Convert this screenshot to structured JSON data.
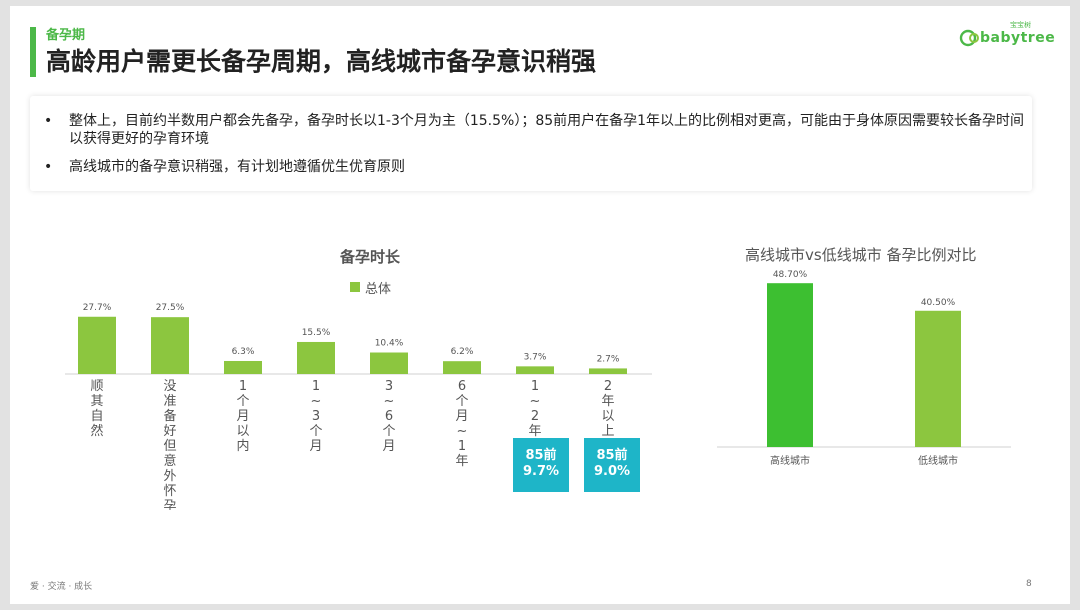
{
  "header": {
    "section": "备孕期",
    "title": "高龄用户需更长备孕周期，高线城市备孕意识稍强",
    "logo_cn": "宝宝树",
    "logo_en": "babytree"
  },
  "summary": {
    "bullets": [
      "整体上，目前约半数用户都会先备孕，备孕时长以1-3个月为主（15.5%）；85前用户在备孕1年以上的比例相对更高，可能由于身体原因需要较长备孕时间以获得更好的孕育环境",
      "高线城市的备孕意识稍强，有计划地遵循优生优育原则"
    ],
    "bullet_symbol": "•"
  },
  "chart_data": [
    {
      "type": "bar",
      "title": "备孕时长",
      "legend": "总体",
      "series": [
        {
          "name": "总体",
          "color": "#8cc63f",
          "values": [
            27.7,
            27.5,
            6.3,
            15.5,
            10.4,
            6.2,
            3.7,
            2.7
          ]
        }
      ],
      "value_labels": [
        "27.7%",
        "27.5%",
        "6.3%",
        "15.5%",
        "10.4%",
        "6.2%",
        "3.7%",
        "2.7%"
      ],
      "categories": [
        "顺其自然",
        "没准备好但意外怀孕",
        "1个月以内",
        "1~3个月",
        "3~6个月",
        "6个月~1年",
        "1~2年",
        "2年以上"
      ],
      "ylim": [
        0,
        30
      ],
      "annotations": [
        {
          "category": "1~2年",
          "line1": "85前",
          "line2": "9.7%"
        },
        {
          "category": "2年以上",
          "line1": "85前",
          "line2": "9.0%"
        }
      ]
    },
    {
      "type": "bar",
      "title": "高线城市vs低线城市 备孕比例对比",
      "categories": [
        "高线城市",
        "低线城市"
      ],
      "values": [
        48.7,
        40.5
      ],
      "value_labels": [
        "48.70%",
        "40.50%"
      ],
      "colors": [
        "#3dbf31",
        "#8cc63f"
      ],
      "ylim": [
        0,
        55
      ]
    }
  ],
  "footer": {
    "tagline": "爱 · 交流 · 成长",
    "page": "8"
  }
}
